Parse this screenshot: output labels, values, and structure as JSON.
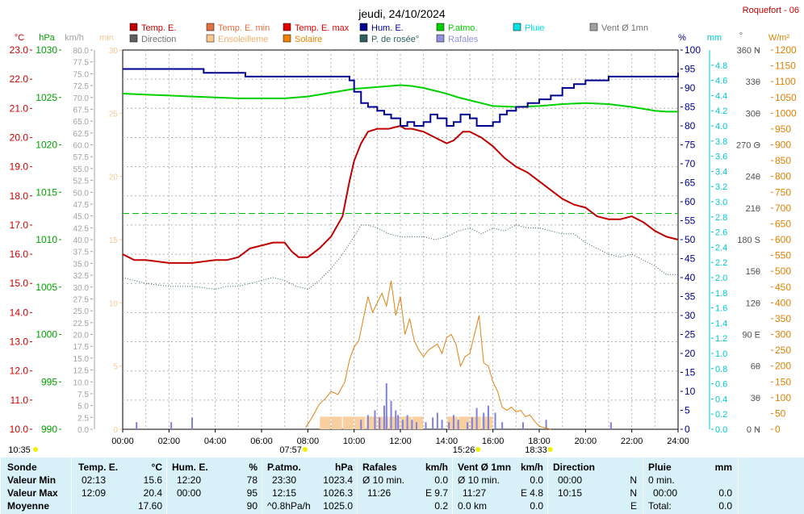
{
  "title": "jeudi, 24/10/2024",
  "station": "Roquefort - 06",
  "unit_labels": {
    "temp": "°C",
    "pressure": "hPa",
    "wind": "km/h",
    "minutes": "min",
    "humidity": "%",
    "rain": "mm",
    "direction": "°",
    "solar": "W/m²"
  },
  "legend": [
    {
      "label": "Temp. E.",
      "color": "#c00000"
    },
    {
      "label": "Temp. E. min",
      "color": "#e07040"
    },
    {
      "label": "Temp. E. max",
      "color": "#e00000"
    },
    {
      "label": "Hum. E.",
      "color": "#000090"
    },
    {
      "label": "P.atmo.",
      "color": "#00d000"
    },
    {
      "label": "Pluie",
      "color": "#00e0e0"
    },
    {
      "label": "Vent Ø 1mn",
      "color": "#a0a0a0"
    },
    {
      "label": "Direction",
      "color": "#606060"
    },
    {
      "label": "Ensoleilleme",
      "color": "#f8c890"
    },
    {
      "label": "Solaire",
      "color": "#f08000"
    },
    {
      "label": "P. de rosée°",
      "color": "#306060"
    },
    {
      "label": "Rafales",
      "color": "#9090e0"
    }
  ],
  "colors": {
    "temp": "#c00000",
    "pressure": "#00d000",
    "humidity": "#000090",
    "dewpoint": "#306060",
    "solar": "#e08010",
    "sunshine": "#f8d0a0",
    "gusts": "#8080e0",
    "rain_axis": "#00c8c8",
    "solar_axis": "#e08000",
    "wind_axis": "#a0a0a0",
    "minutes_axis": "#f8c890",
    "temp_axis": "#d00000",
    "pressure_axis": "#00a000",
    "grid": "#b0b0b0",
    "summary_bg": "#d8f0f8",
    "sun_marker": "#f0f000"
  },
  "chart_data": {
    "type": "line",
    "xlim": [
      0,
      24
    ],
    "x_ticks": [
      "00:00",
      "02:00",
      "04:00",
      "06:00",
      "08:00",
      "10:00",
      "12:00",
      "14:00",
      "16:00",
      "18:00",
      "20:00",
      "22:00",
      "24:00"
    ],
    "axes": {
      "temp": {
        "range": [
          10,
          23
        ],
        "ticks": [
          "10.0",
          "11.0",
          "12.0",
          "13.0",
          "14.0",
          "15.0",
          "16.0",
          "17.0",
          "18.0",
          "19.0",
          "20.0",
          "21.0",
          "22.0",
          "23.0"
        ]
      },
      "pressure": {
        "range": [
          990,
          1030
        ],
        "ticks": [
          "990",
          "995",
          "1000",
          "1005",
          "1010",
          "1015",
          "1020",
          "1025",
          "1030"
        ]
      },
      "wind": {
        "range": [
          0,
          80
        ],
        "ticks": [
          "0.0",
          "2.5",
          "5.0",
          "7.5",
          "10.0",
          "12.5",
          "15.0",
          "17.5",
          "20.0",
          "22.5",
          "25.0",
          "27.5",
          "30.0",
          "32.5",
          "35.0",
          "37.5",
          "40.0",
          "42.5",
          "45.0",
          "47.5",
          "50.0",
          "52.5",
          "55.0",
          "57.5",
          "60.0",
          "62.5",
          "65.0",
          "67.5",
          "70.0",
          "72.5",
          "75.0",
          "77.5",
          "80.0"
        ]
      },
      "minutes": {
        "range": [
          0,
          30
        ],
        "ticks": [
          "0",
          "5",
          "10",
          "15",
          "20",
          "25",
          "30"
        ]
      },
      "humidity": {
        "range": [
          0,
          100
        ],
        "ticks": [
          "0",
          "5",
          "10",
          "15",
          "20",
          "25",
          "30",
          "35",
          "40",
          "45",
          "50",
          "55",
          "60",
          "65",
          "70",
          "75",
          "80",
          "85",
          "90",
          "95",
          "100"
        ]
      },
      "rain": {
        "range": [
          0,
          5
        ],
        "ticks": [
          "0.0",
          "0.2",
          "0.4",
          "0.6",
          "0.8",
          "1.0",
          "1.2",
          "1.4",
          "1.6",
          "1.8",
          "2.0",
          "2.2",
          "2.4",
          "2.6",
          "2.8",
          "3.0",
          "3.2",
          "3.4",
          "3.6",
          "3.8",
          "4.0",
          "4.2",
          "4.4",
          "4.6",
          "4.8"
        ]
      },
      "direction": {
        "range": [
          0,
          360
        ],
        "ticks": [
          "0 N",
          "30",
          "60",
          "90 E",
          "120",
          "150",
          "180 S",
          "210",
          "240",
          "270 O",
          "300",
          "330",
          "360 N"
        ]
      },
      "solar": {
        "range": [
          0,
          1200
        ],
        "ticks": [
          "0",
          "50",
          "100",
          "150",
          "200",
          "250",
          "300",
          "350",
          "400",
          "450",
          "500",
          "550",
          "600",
          "650",
          "700",
          "750",
          "800",
          "850",
          "900",
          "950",
          "1000",
          "1050",
          "1100",
          "1150",
          "1200"
        ]
      }
    },
    "series": [
      {
        "name": "Temp. E.",
        "axis": "temp",
        "x": [
          0,
          0.5,
          1,
          2,
          3,
          4,
          4.5,
          5,
          5.5,
          6,
          6.5,
          7,
          7.3,
          7.6,
          7.8,
          8,
          8.5,
          9,
          9.5,
          9.8,
          10,
          10.3,
          10.6,
          11,
          11.5,
          12,
          12.2,
          12.5,
          13,
          13.5,
          14,
          14.3,
          14.7,
          15,
          15.5,
          16,
          16.5,
          17,
          17.5,
          18,
          18.5,
          19,
          19.5,
          20,
          20.5,
          21,
          21.5,
          22,
          22.5,
          23,
          23.5,
          24
        ],
        "y": [
          16.0,
          15.8,
          15.8,
          15.7,
          15.7,
          15.8,
          15.8,
          15.9,
          16.2,
          16.3,
          16.4,
          16.4,
          16.1,
          15.9,
          15.9,
          15.9,
          16.2,
          16.6,
          17.3,
          18.5,
          19.2,
          19.8,
          20.2,
          20.3,
          20.3,
          20.4,
          20.3,
          20.3,
          20.2,
          20.0,
          19.8,
          19.9,
          20.2,
          20.2,
          20.0,
          19.7,
          19.3,
          19.0,
          18.8,
          18.5,
          18.2,
          17.9,
          17.7,
          17.6,
          17.3,
          17.2,
          17.2,
          17.3,
          17.1,
          16.8,
          16.6,
          16.5
        ]
      },
      {
        "name": "P.atmo.",
        "axis": "pressure",
        "x": [
          0,
          1,
          2,
          3,
          4,
          5,
          6,
          7,
          8,
          9,
          10,
          10.5,
          11,
          12,
          12.5,
          13,
          13.5,
          14,
          14.5,
          15,
          15.5,
          16,
          17,
          18,
          19,
          20,
          21,
          22,
          22.5,
          23,
          23.5,
          24
        ],
        "y": [
          1025.4,
          1025.3,
          1025.2,
          1025.1,
          1025.0,
          1024.9,
          1024.9,
          1024.9,
          1025.1,
          1025.5,
          1025.9,
          1026.0,
          1026.1,
          1026.3,
          1026.2,
          1026.0,
          1025.7,
          1025.4,
          1025.0,
          1024.7,
          1024.4,
          1024.1,
          1024.0,
          1024.1,
          1024.3,
          1024.4,
          1024.3,
          1024.0,
          1023.8,
          1023.6,
          1023.5,
          1023.5
        ]
      },
      {
        "name": "Hum. E.",
        "axis": "humidity",
        "x": [
          0,
          1,
          2,
          3,
          3.5,
          4,
          4.5,
          5,
          5.3,
          6,
          7,
          8,
          9,
          9.5,
          9.8,
          10,
          10.3,
          10.6,
          11,
          11.3,
          11.6,
          12,
          12.3,
          12.6,
          13,
          13.3,
          13.6,
          14,
          14.3,
          14.6,
          15,
          15.3,
          15.6,
          16,
          16.3,
          16.6,
          17,
          17.5,
          18,
          18.5,
          19,
          19.5,
          20,
          20.5,
          21,
          21.5,
          22,
          22.5,
          23,
          23.5,
          24
        ],
        "y": [
          95,
          95,
          95,
          95,
          94,
          94,
          94,
          94,
          93,
          93,
          93,
          93,
          93,
          93,
          92,
          89,
          86,
          85,
          84,
          83,
          82,
          80,
          81,
          80,
          81,
          83,
          82,
          80,
          81,
          83,
          82,
          80,
          80,
          81,
          83,
          84,
          85,
          86,
          87,
          88,
          90,
          91,
          92,
          92,
          93,
          93,
          93,
          93,
          93,
          93,
          94
        ]
      },
      {
        "name": "P. de rosée°",
        "axis": "temp",
        "x": [
          0,
          0.5,
          1,
          2,
          3,
          4,
          4.5,
          5,
          5.5,
          6,
          6.5,
          7,
          7.5,
          8,
          8.5,
          9,
          9.5,
          10,
          10.3,
          10.6,
          11,
          11.5,
          12,
          12.5,
          13,
          13.5,
          14,
          14.5,
          15,
          15.5,
          16,
          16.5,
          17,
          17.5,
          18,
          18.5,
          19,
          19.5,
          20,
          20.5,
          21,
          21.5,
          22,
          22.5,
          23,
          23.5,
          24
        ],
        "y": [
          15.2,
          15.1,
          15.0,
          14.9,
          14.9,
          14.8,
          14.9,
          14.9,
          15.0,
          15.1,
          15.2,
          15.1,
          14.9,
          14.8,
          15.1,
          15.5,
          16.0,
          16.6,
          17.0,
          17.0,
          16.9,
          16.7,
          16.6,
          16.6,
          16.6,
          16.5,
          16.6,
          16.8,
          16.9,
          16.7,
          16.9,
          16.8,
          17.0,
          16.9,
          16.9,
          16.8,
          16.7,
          16.7,
          16.4,
          16.2,
          16.0,
          15.9,
          16.0,
          15.8,
          15.6,
          15.3,
          15.3
        ]
      },
      {
        "name": "Solaire",
        "axis": "solar",
        "x": [
          7.9,
          8.2,
          8.5,
          8.8,
          9,
          9.3,
          9.6,
          9.8,
          10,
          10.2,
          10.4,
          10.6,
          10.8,
          11,
          11.2,
          11.4,
          11.6,
          11.8,
          12,
          12.2,
          12.4,
          12.6,
          12.8,
          13,
          13.2,
          13.4,
          13.6,
          13.8,
          14,
          14.2,
          14.4,
          14.6,
          14.8,
          15,
          15.2,
          15.4,
          15.6,
          15.8,
          16,
          16.2,
          16.4,
          16.6,
          16.8,
          17,
          17.2,
          17.4,
          17.6,
          17.8,
          18,
          18.2,
          18.5
        ],
        "y": [
          5,
          40,
          80,
          100,
          120,
          110,
          150,
          220,
          260,
          280,
          350,
          420,
          370,
          400,
          430,
          390,
          470,
          360,
          420,
          300,
          350,
          280,
          250,
          230,
          250,
          260,
          270,
          240,
          290,
          300,
          270,
          200,
          230,
          240,
          300,
          360,
          210,
          200,
          150,
          120,
          70,
          60,
          70,
          55,
          60,
          40,
          45,
          25,
          10,
          5,
          0
        ]
      },
      {
        "name": "Ensoleilleme",
        "axis": "minutes",
        "x": [
          8.75,
          9.25,
          9.75,
          10.25,
          10.75,
          11.25,
          11.75,
          12.25,
          12.75,
          13.25,
          13.75,
          14.25,
          14.75,
          15.25,
          15.75,
          16.25
        ],
        "y": [
          1,
          1,
          1,
          1,
          1,
          1,
          1,
          1,
          1,
          0,
          0,
          1,
          1,
          1,
          1,
          0
        ]
      },
      {
        "name": "Rafales",
        "axis": "wind",
        "x": [
          0.6,
          2.1,
          3.0,
          10.3,
          10.6,
          10.9,
          11.1,
          11.3,
          11.4,
          11.6,
          11.8,
          11.9,
          12.1,
          12.3,
          12.5,
          12.7,
          13.1,
          13.4,
          13.6,
          13.8,
          14.1,
          14.3,
          14.5,
          14.9,
          15.1,
          15.3,
          15.6,
          15.8,
          16.1,
          16.4,
          17.3,
          18.3,
          21.1
        ],
        "y": [
          1.5,
          1.5,
          2.5,
          2.0,
          3.0,
          4.0,
          2.5,
          5.0,
          9.7,
          6.0,
          4.0,
          3.0,
          2.0,
          3.0,
          2.0,
          1.5,
          1.5,
          2.5,
          3.5,
          2.0,
          1.5,
          3.0,
          2.0,
          1.5,
          2.5,
          4.5,
          3.5,
          5.0,
          3.5,
          1.5,
          1.5,
          2.0,
          1.5
        ]
      }
    ],
    "reference_line": {
      "axis": "temp",
      "value": 17.4,
      "color": "#00c000"
    },
    "sun_events": [
      {
        "time": "10:35",
        "x": 0
      },
      {
        "time": "07:57",
        "x": 7.95
      },
      {
        "time": "15:26",
        "x": 15.43
      },
      {
        "time": "18:33",
        "x": 18.55
      }
    ]
  },
  "summary": {
    "sonde": {
      "header": "Sonde",
      "rows": [
        "Valeur Min",
        "Valeur Max",
        "Moyenne"
      ]
    },
    "temp": {
      "header": "Temp. E.",
      "unit": "°C",
      "rows": [
        {
          "t": "02:13",
          "v": "15.6"
        },
        {
          "t": "12:09",
          "v": "20.4"
        },
        {
          "t": "",
          "v": "17.60"
        }
      ]
    },
    "hum": {
      "header": "Hum. E.",
      "unit": "%",
      "rows": [
        {
          "t": "12:20",
          "v": "78"
        },
        {
          "t": "00:00",
          "v": "95"
        },
        {
          "t": "",
          "v": "90"
        }
      ]
    },
    "patmo": {
      "header": "P.atmo.",
      "unit": "hPa",
      "rows": [
        {
          "t": "23:30",
          "v": "1023.4"
        },
        {
          "t": "12:15",
          "v": "1026.3"
        },
        {
          "t": "^0.8hPa/h",
          "v": "1025.0"
        }
      ]
    },
    "rafales": {
      "header": "Rafales",
      "unit": "km/h",
      "rows": [
        {
          "t": "Ø 10 min.",
          "v": "0.0"
        },
        {
          "t": "11:26",
          "v": "E 9.7"
        },
        {
          "t": "",
          "v": "0.2"
        }
      ]
    },
    "vent": {
      "header": "Vent Ø 1mn",
      "unit": "km/h",
      "rows": [
        {
          "t": "Ø 10 min.",
          "v": "0.0"
        },
        {
          "t": "11:27",
          "v": "E 4.8"
        },
        {
          "t": "0.0 km",
          "v": "0.0"
        }
      ]
    },
    "direction": {
      "header": "Direction",
      "rows": [
        {
          "t": "00:00",
          "v": "N"
        },
        {
          "t": "10:15",
          "v": "N"
        },
        {
          "t": "",
          "v": "E"
        }
      ]
    },
    "pluie": {
      "header": "Pluie",
      "unit": "mm",
      "rows": [
        {
          "t": "0 min.",
          "v": ""
        },
        {
          "t": "00:00",
          "v": "0.0"
        },
        {
          "t": "Total:",
          "v": "0.0"
        }
      ]
    }
  }
}
